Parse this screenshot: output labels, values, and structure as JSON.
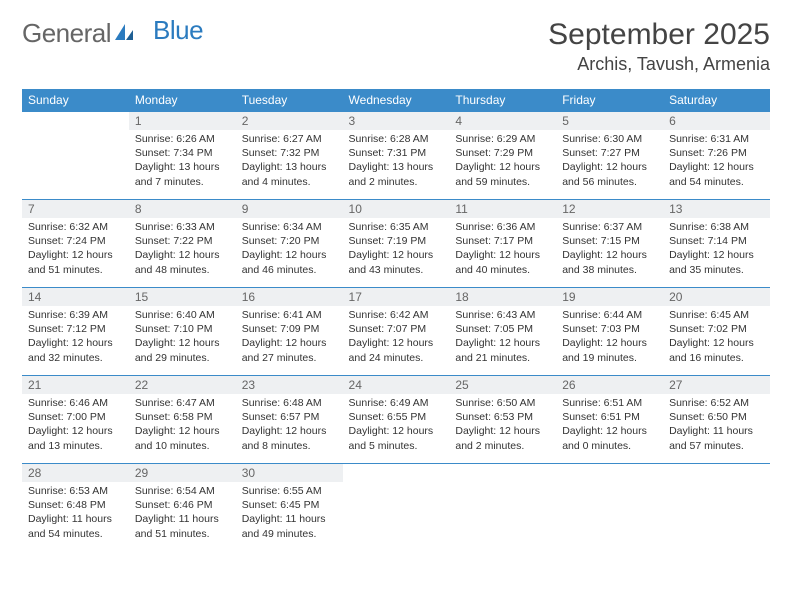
{
  "logo": {
    "general": "General",
    "blue": "Blue"
  },
  "title": "September 2025",
  "location": "Archis, Tavush, Armenia",
  "colors": {
    "header_bg": "#3b8bc9",
    "header_text": "#ffffff",
    "daynum_bg": "#eef0f2",
    "daynum_text": "#666666",
    "body_text": "#333333",
    "rule": "#3b8bc9",
    "logo_blue": "#2b7bbf"
  },
  "dow": [
    "Sunday",
    "Monday",
    "Tuesday",
    "Wednesday",
    "Thursday",
    "Friday",
    "Saturday"
  ],
  "weeks": [
    [
      {
        "n": "",
        "sr": "",
        "ss": "",
        "dl": ""
      },
      {
        "n": "1",
        "sr": "Sunrise: 6:26 AM",
        "ss": "Sunset: 7:34 PM",
        "dl": "Daylight: 13 hours and 7 minutes."
      },
      {
        "n": "2",
        "sr": "Sunrise: 6:27 AM",
        "ss": "Sunset: 7:32 PM",
        "dl": "Daylight: 13 hours and 4 minutes."
      },
      {
        "n": "3",
        "sr": "Sunrise: 6:28 AM",
        "ss": "Sunset: 7:31 PM",
        "dl": "Daylight: 13 hours and 2 minutes."
      },
      {
        "n": "4",
        "sr": "Sunrise: 6:29 AM",
        "ss": "Sunset: 7:29 PM",
        "dl": "Daylight: 12 hours and 59 minutes."
      },
      {
        "n": "5",
        "sr": "Sunrise: 6:30 AM",
        "ss": "Sunset: 7:27 PM",
        "dl": "Daylight: 12 hours and 56 minutes."
      },
      {
        "n": "6",
        "sr": "Sunrise: 6:31 AM",
        "ss": "Sunset: 7:26 PM",
        "dl": "Daylight: 12 hours and 54 minutes."
      }
    ],
    [
      {
        "n": "7",
        "sr": "Sunrise: 6:32 AM",
        "ss": "Sunset: 7:24 PM",
        "dl": "Daylight: 12 hours and 51 minutes."
      },
      {
        "n": "8",
        "sr": "Sunrise: 6:33 AM",
        "ss": "Sunset: 7:22 PM",
        "dl": "Daylight: 12 hours and 48 minutes."
      },
      {
        "n": "9",
        "sr": "Sunrise: 6:34 AM",
        "ss": "Sunset: 7:20 PM",
        "dl": "Daylight: 12 hours and 46 minutes."
      },
      {
        "n": "10",
        "sr": "Sunrise: 6:35 AM",
        "ss": "Sunset: 7:19 PM",
        "dl": "Daylight: 12 hours and 43 minutes."
      },
      {
        "n": "11",
        "sr": "Sunrise: 6:36 AM",
        "ss": "Sunset: 7:17 PM",
        "dl": "Daylight: 12 hours and 40 minutes."
      },
      {
        "n": "12",
        "sr": "Sunrise: 6:37 AM",
        "ss": "Sunset: 7:15 PM",
        "dl": "Daylight: 12 hours and 38 minutes."
      },
      {
        "n": "13",
        "sr": "Sunrise: 6:38 AM",
        "ss": "Sunset: 7:14 PM",
        "dl": "Daylight: 12 hours and 35 minutes."
      }
    ],
    [
      {
        "n": "14",
        "sr": "Sunrise: 6:39 AM",
        "ss": "Sunset: 7:12 PM",
        "dl": "Daylight: 12 hours and 32 minutes."
      },
      {
        "n": "15",
        "sr": "Sunrise: 6:40 AM",
        "ss": "Sunset: 7:10 PM",
        "dl": "Daylight: 12 hours and 29 minutes."
      },
      {
        "n": "16",
        "sr": "Sunrise: 6:41 AM",
        "ss": "Sunset: 7:09 PM",
        "dl": "Daylight: 12 hours and 27 minutes."
      },
      {
        "n": "17",
        "sr": "Sunrise: 6:42 AM",
        "ss": "Sunset: 7:07 PM",
        "dl": "Daylight: 12 hours and 24 minutes."
      },
      {
        "n": "18",
        "sr": "Sunrise: 6:43 AM",
        "ss": "Sunset: 7:05 PM",
        "dl": "Daylight: 12 hours and 21 minutes."
      },
      {
        "n": "19",
        "sr": "Sunrise: 6:44 AM",
        "ss": "Sunset: 7:03 PM",
        "dl": "Daylight: 12 hours and 19 minutes."
      },
      {
        "n": "20",
        "sr": "Sunrise: 6:45 AM",
        "ss": "Sunset: 7:02 PM",
        "dl": "Daylight: 12 hours and 16 minutes."
      }
    ],
    [
      {
        "n": "21",
        "sr": "Sunrise: 6:46 AM",
        "ss": "Sunset: 7:00 PM",
        "dl": "Daylight: 12 hours and 13 minutes."
      },
      {
        "n": "22",
        "sr": "Sunrise: 6:47 AM",
        "ss": "Sunset: 6:58 PM",
        "dl": "Daylight: 12 hours and 10 minutes."
      },
      {
        "n": "23",
        "sr": "Sunrise: 6:48 AM",
        "ss": "Sunset: 6:57 PM",
        "dl": "Daylight: 12 hours and 8 minutes."
      },
      {
        "n": "24",
        "sr": "Sunrise: 6:49 AM",
        "ss": "Sunset: 6:55 PM",
        "dl": "Daylight: 12 hours and 5 minutes."
      },
      {
        "n": "25",
        "sr": "Sunrise: 6:50 AM",
        "ss": "Sunset: 6:53 PM",
        "dl": "Daylight: 12 hours and 2 minutes."
      },
      {
        "n": "26",
        "sr": "Sunrise: 6:51 AM",
        "ss": "Sunset: 6:51 PM",
        "dl": "Daylight: 12 hours and 0 minutes."
      },
      {
        "n": "27",
        "sr": "Sunrise: 6:52 AM",
        "ss": "Sunset: 6:50 PM",
        "dl": "Daylight: 11 hours and 57 minutes."
      }
    ],
    [
      {
        "n": "28",
        "sr": "Sunrise: 6:53 AM",
        "ss": "Sunset: 6:48 PM",
        "dl": "Daylight: 11 hours and 54 minutes."
      },
      {
        "n": "29",
        "sr": "Sunrise: 6:54 AM",
        "ss": "Sunset: 6:46 PM",
        "dl": "Daylight: 11 hours and 51 minutes."
      },
      {
        "n": "30",
        "sr": "Sunrise: 6:55 AM",
        "ss": "Sunset: 6:45 PM",
        "dl": "Daylight: 11 hours and 49 minutes."
      },
      {
        "n": "",
        "sr": "",
        "ss": "",
        "dl": ""
      },
      {
        "n": "",
        "sr": "",
        "ss": "",
        "dl": ""
      },
      {
        "n": "",
        "sr": "",
        "ss": "",
        "dl": ""
      },
      {
        "n": "",
        "sr": "",
        "ss": "",
        "dl": ""
      }
    ]
  ]
}
